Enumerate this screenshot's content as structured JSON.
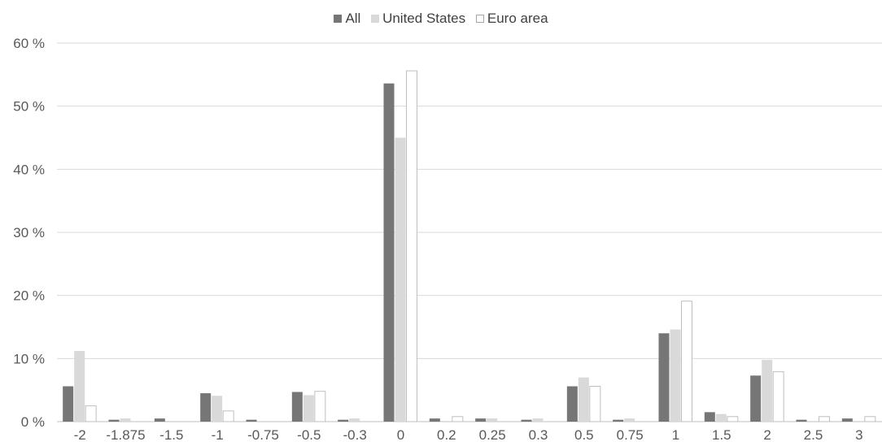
{
  "chart_data": {
    "type": "bar",
    "title": "",
    "xlabel": "",
    "ylabel": "",
    "ylim": [
      0,
      60
    ],
    "yticks": [
      0,
      10,
      20,
      30,
      40,
      50,
      60
    ],
    "ytick_labels": [
      "0 %",
      "10 %",
      "20 %",
      "30 %",
      "40 %",
      "50 %",
      "60 %"
    ],
    "grid": "horizontal",
    "legend_position": "top-center",
    "categories": [
      "-2",
      "-1.875",
      "-1.5",
      "-1",
      "-0.75",
      "-0.5",
      "-0.3",
      "0",
      "0.2",
      "0.25",
      "0.3",
      "0.5",
      "0.75",
      "1",
      "1.5",
      "2",
      "2.5",
      "3"
    ],
    "series": [
      {
        "name": "All",
        "color": "#767676",
        "values": [
          5.6,
          0.3,
          0.5,
          4.5,
          0.3,
          4.7,
          0.3,
          53.6,
          0.5,
          0.5,
          0.3,
          5.6,
          0.3,
          14.0,
          1.5,
          7.3,
          0.3,
          0.5
        ]
      },
      {
        "name": "United States",
        "color": "#d9d9d9",
        "values": [
          11.2,
          0.5,
          0.0,
          4.1,
          0.0,
          4.2,
          0.5,
          45.0,
          0.0,
          0.5,
          0.5,
          7.0,
          0.5,
          14.6,
          1.2,
          9.8,
          0.0,
          0.0
        ]
      },
      {
        "name": "Euro area",
        "color": "#ffffff",
        "values": [
          2.5,
          0.0,
          0.0,
          1.7,
          0.0,
          4.8,
          0.0,
          55.6,
          0.8,
          0.0,
          0.0,
          5.6,
          0.0,
          19.1,
          0.8,
          7.9,
          0.8,
          0.8
        ]
      }
    ]
  }
}
